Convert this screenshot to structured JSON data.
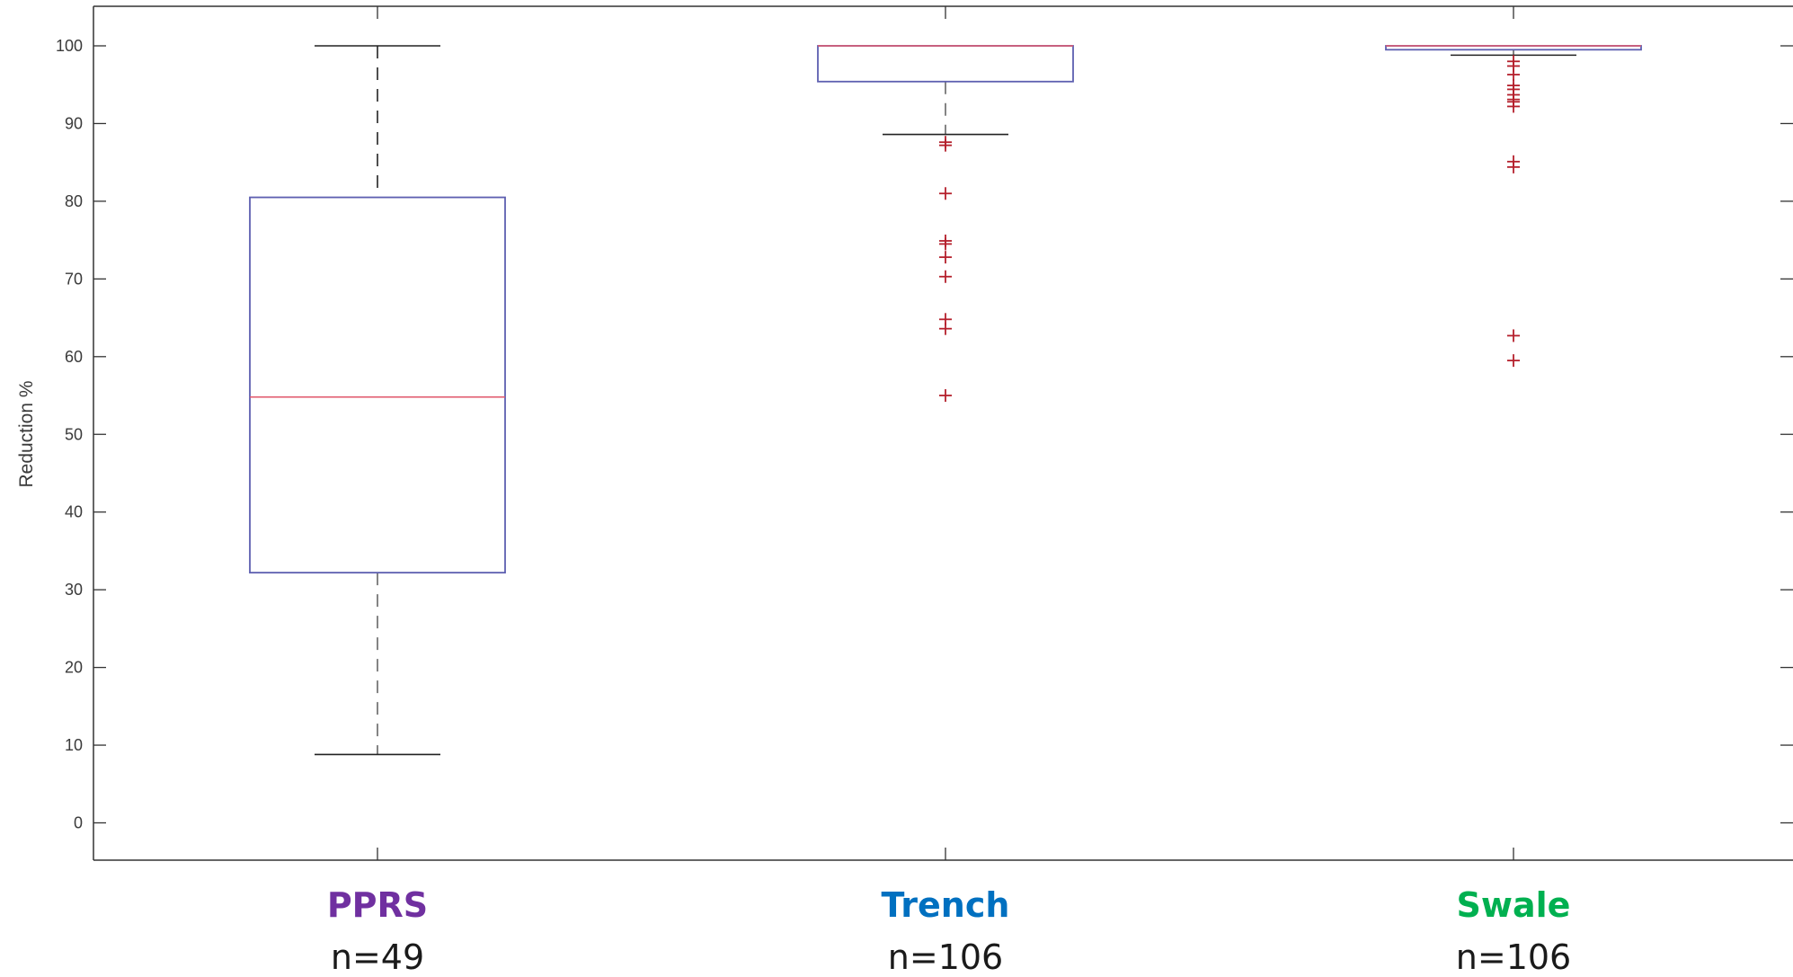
{
  "chart_data": {
    "type": "box",
    "title": "",
    "xlabel": "",
    "ylabel": "Reduction %",
    "ylim": [
      -5,
      105
    ],
    "yticks": [
      0,
      10,
      20,
      30,
      40,
      50,
      60,
      70,
      80,
      90,
      100
    ],
    "grid": false,
    "colors": {
      "box": "#5d5fb0",
      "median": "#e0566a",
      "whisker": "#222222",
      "outlier": "#b5202c",
      "axis": "#333333"
    },
    "categories": [
      {
        "label": "PPRS",
        "label_color": "#7030a0",
        "n_label": "n=49",
        "q1": 32.2,
        "median": 54.8,
        "q3": 80.5,
        "whisker_low": 8.8,
        "whisker_high": 100,
        "outliers": []
      },
      {
        "label": "Trench",
        "label_color": "#0070c0",
        "n_label": "n=106",
        "q1": 95.4,
        "median": 100,
        "q3": 100,
        "whisker_low": 88.6,
        "whisker_high": 100,
        "outliers": [
          87.6,
          87.2,
          81.0,
          74.9,
          74.5,
          72.8,
          70.3,
          64.8,
          63.6,
          55.0
        ]
      },
      {
        "label": "Swale",
        "label_color": "#00b050",
        "n_label": "n=106",
        "q1": 99.5,
        "median": 100,
        "q3": 100,
        "whisker_low": 98.8,
        "whisker_high": 100,
        "outliers": [
          98.0,
          97.4,
          96.3,
          94.9,
          94.4,
          93.7,
          93.1,
          92.8,
          92.2,
          85.1,
          84.4,
          62.7,
          59.5
        ]
      }
    ]
  }
}
